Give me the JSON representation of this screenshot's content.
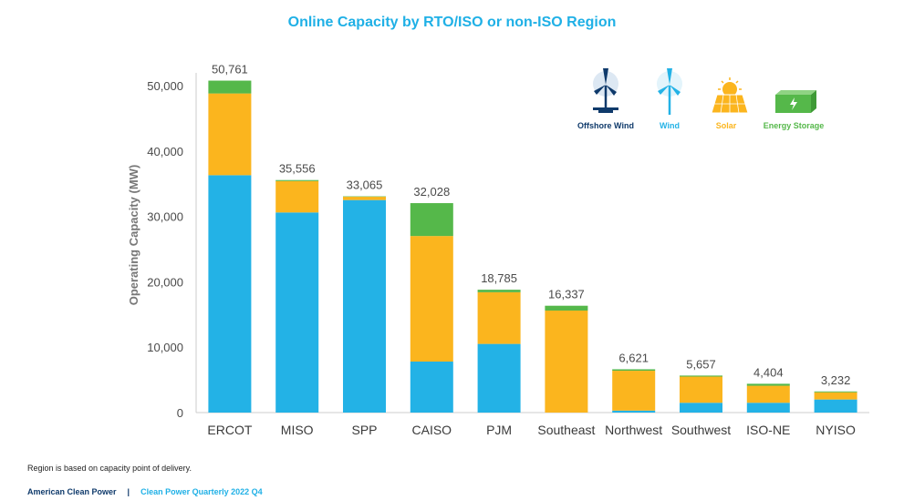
{
  "chart_data": {
    "type": "bar",
    "stacked": true,
    "title": "Online Capacity by RTO/ISO or non-ISO Region",
    "ylabel": "Operating Capacity (MW)",
    "ylim": [
      0,
      50000
    ],
    "yticks": [
      "0",
      "10,000",
      "20,000",
      "30,000",
      "40,000",
      "50,000"
    ],
    "categories": [
      "ERCOT",
      "MISO",
      "SPP",
      "CAISO",
      "PJM",
      "Southeast",
      "Northwest",
      "Southwest",
      "ISO-NE",
      "NYISO"
    ],
    "totals": [
      "50,761",
      "35,556",
      "33,065",
      "32,028",
      "18,785",
      "16,337",
      "6,621",
      "5,657",
      "4,404",
      "3,232"
    ],
    "series": [
      {
        "name": "Offshore Wind",
        "color": "#0f3a6b",
        "values": [
          0,
          0,
          0,
          0,
          0,
          0,
          0,
          0,
          0,
          0
        ]
      },
      {
        "name": "Wind",
        "color": "#23b2e6",
        "values": [
          36300,
          30600,
          32500,
          7800,
          10500,
          0,
          300,
          1500,
          1500,
          2000
        ]
      },
      {
        "name": "Solar",
        "color": "#fbb51e",
        "values": [
          12500,
          4800,
          500,
          19200,
          7900,
          15600,
          6100,
          4000,
          2600,
          1100
        ]
      },
      {
        "name": "Energy Storage",
        "color": "#55b84a",
        "values": [
          1961,
          156,
          65,
          5028,
          385,
          737,
          221,
          157,
          304,
          132
        ]
      }
    ],
    "grid": false,
    "legend_position": "top-right"
  },
  "note": "Region is based on capacity point of delivery.",
  "footer": {
    "org": "American Clean Power",
    "separator": "|",
    "report": "Clean Power Quarterly 2022 Q4"
  }
}
